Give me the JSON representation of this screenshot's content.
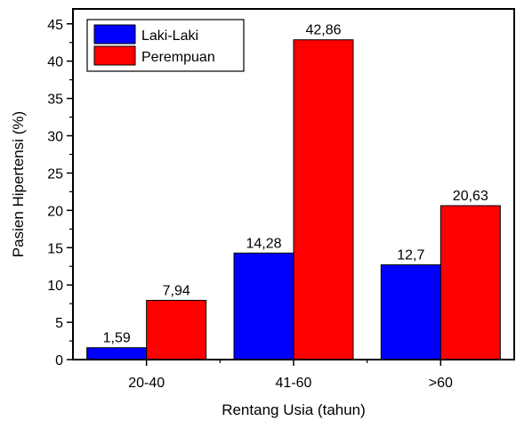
{
  "chart_data": {
    "type": "bar",
    "categories": [
      "20-40",
      "41-60",
      ">60"
    ],
    "series": [
      {
        "name": "Laki-Laki",
        "color": "#0000ff",
        "values": [
          1.59,
          14.28,
          12.7
        ],
        "labels": [
          "1,59",
          "14,28",
          "12,7"
        ]
      },
      {
        "name": "Perempuan",
        "color": "#ff0000",
        "values": [
          7.94,
          42.86,
          20.63
        ],
        "labels": [
          "7,94",
          "42,86",
          "20,63"
        ]
      }
    ],
    "xlabel": "Rentang Usia (tahun)",
    "ylabel": "Pasien Hipertensi (%)",
    "ylim": [
      0,
      47
    ],
    "yticks": [
      0,
      5,
      10,
      15,
      20,
      25,
      30,
      35,
      40,
      45
    ],
    "grid": false,
    "legend_position": "top-left"
  }
}
